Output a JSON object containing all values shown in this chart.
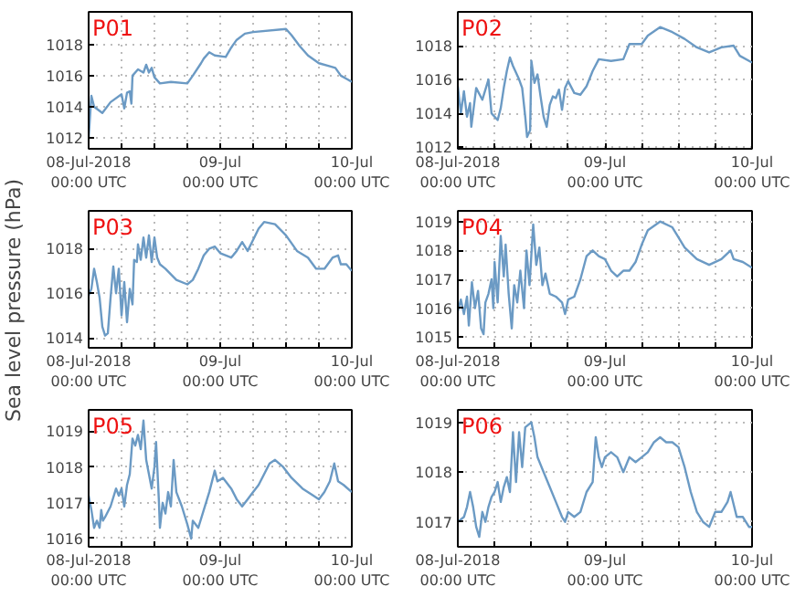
{
  "chart_data": [
    {
      "type": "line",
      "title": "P01",
      "xlim": [
        "2018-07-08T00:00",
        "2018-07-10T00:00"
      ],
      "ylim": [
        1011.3,
        1020.1
      ],
      "yticks": [
        1012,
        1014,
        1016,
        1018
      ],
      "grid": true,
      "xticks": [
        {
          "value": "2018-07-08T00:00",
          "label": "08-Jul-2018\n00:00 UTC"
        },
        {
          "value": "2018-07-08T06:00",
          "label": null
        },
        {
          "value": "2018-07-08T12:00",
          "label": null
        },
        {
          "value": "2018-07-08T18:00",
          "label": null
        },
        {
          "value": "2018-07-09T00:00",
          "label": "09-Jul\n00:00 UTC"
        },
        {
          "value": "2018-07-09T06:00",
          "label": null
        },
        {
          "value": "2018-07-09T12:00",
          "label": null
        },
        {
          "value": "2018-07-09T18:00",
          "label": null
        },
        {
          "value": "2018-07-10T00:00",
          "label": "10-Jul\n00:00 UTC"
        }
      ],
      "series": [
        {
          "color": "#6b9ac4",
          "x": [
            "2018-07-08T00:00",
            "2018-07-08T00:30",
            "2018-07-08T01:00",
            "2018-07-08T02:30",
            "2018-07-08T04:00",
            "2018-07-08T06:00",
            "2018-07-08T06:30",
            "2018-07-08T07:00",
            "2018-07-08T07:30",
            "2018-07-08T07:48",
            "2018-07-08T08:00",
            "2018-07-08T09:00",
            "2018-07-08T10:00",
            "2018-07-08T10:30",
            "2018-07-08T11:00",
            "2018-07-08T11:30",
            "2018-07-08T12:00",
            "2018-07-08T13:00",
            "2018-07-08T15:00",
            "2018-07-08T18:00",
            "2018-07-08T19:00",
            "2018-07-08T20:30",
            "2018-07-08T21:00",
            "2018-07-08T22:00",
            "2018-07-08T23:00",
            "2018-07-09T01:00",
            "2018-07-09T02:00",
            "2018-07-09T03:00",
            "2018-07-09T04:30",
            "2018-07-09T06:00",
            "2018-07-09T12:00",
            "2018-07-09T13:00",
            "2018-07-09T14:30",
            "2018-07-09T16:00",
            "2018-07-09T18:00",
            "2018-07-09T20:00",
            "2018-07-09T21:00",
            "2018-07-09T22:00",
            "2018-07-09T23:00",
            "2018-07-10T00:00"
          ],
          "values": [
            1012.0,
            1014.7,
            1014.0,
            1013.6,
            1014.3,
            1014.8,
            1013.9,
            1014.9,
            1015.0,
            1014.2,
            1016.0,
            1016.4,
            1016.2,
            1016.7,
            1016.2,
            1016.5,
            1015.9,
            1015.5,
            1015.6,
            1015.5,
            1016.0,
            1016.8,
            1017.1,
            1017.5,
            1017.3,
            1017.2,
            1017.8,
            1018.3,
            1018.7,
            1018.8,
            1019.0,
            1018.6,
            1017.9,
            1017.3,
            1016.8,
            1016.6,
            1016.5,
            1016.0,
            1015.8,
            1015.6
          ]
        }
      ]
    },
    {
      "type": "line",
      "title": "P02",
      "xlim": [
        "2018-07-08T00:00",
        "2018-07-10T00:00"
      ],
      "ylim": [
        1011.9,
        1020.0
      ],
      "yticks": [
        1012,
        1014,
        1016,
        1018
      ],
      "grid": true,
      "xticks": [
        {
          "value": "2018-07-08T00:00",
          "label": "08-Jul-2018\n00:00 UTC"
        },
        {
          "value": "2018-07-08T06:00",
          "label": null
        },
        {
          "value": "2018-07-08T12:00",
          "label": null
        },
        {
          "value": "2018-07-08T18:00",
          "label": null
        },
        {
          "value": "2018-07-09T00:00",
          "label": "09-Jul\n00:00 UTC"
        },
        {
          "value": "2018-07-09T06:00",
          "label": null
        },
        {
          "value": "2018-07-09T12:00",
          "label": null
        },
        {
          "value": "2018-07-09T18:00",
          "label": null
        },
        {
          "value": "2018-07-10T00:00",
          "label": "10-Jul\n00:00 UTC"
        }
      ],
      "series": [
        {
          "color": "#6b9ac4",
          "x": [
            "2018-07-08T00:00",
            "2018-07-08T00:30",
            "2018-07-08T01:00",
            "2018-07-08T01:30",
            "2018-07-08T02:00",
            "2018-07-08T02:12",
            "2018-07-08T03:00",
            "2018-07-08T04:00",
            "2018-07-08T05:00",
            "2018-07-08T05:30",
            "2018-07-08T06:30",
            "2018-07-08T07:00",
            "2018-07-08T07:30",
            "2018-07-08T08:00",
            "2018-07-08T08:30",
            "2018-07-08T09:00",
            "2018-07-08T10:00",
            "2018-07-08T10:30",
            "2018-07-08T11:00",
            "2018-07-08T11:18",
            "2018-07-08T11:48",
            "2018-07-08T12:00",
            "2018-07-08T12:30",
            "2018-07-08T13:00",
            "2018-07-08T13:30",
            "2018-07-08T14:00",
            "2018-07-08T14:30",
            "2018-07-08T15:00",
            "2018-07-08T15:30",
            "2018-07-08T16:00",
            "2018-07-08T16:30",
            "2018-07-08T17:00",
            "2018-07-08T17:30",
            "2018-07-08T18:00",
            "2018-07-08T19:00",
            "2018-07-08T20:00",
            "2018-07-08T21:00",
            "2018-07-08T22:00",
            "2018-07-08T23:00",
            "2018-07-09T01:00",
            "2018-07-09T03:00",
            "2018-07-09T04:00",
            "2018-07-09T06:00",
            "2018-07-09T07:00",
            "2018-07-09T09:00",
            "2018-07-09T11:00",
            "2018-07-09T13:00",
            "2018-07-09T15:00",
            "2018-07-09T17:00",
            "2018-07-09T19:00",
            "2018-07-09T21:00",
            "2018-07-09T22:00",
            "2018-07-10T00:00"
          ],
          "values": [
            1015.6,
            1014.0,
            1015.3,
            1013.8,
            1014.6,
            1013.2,
            1015.5,
            1014.8,
            1016.0,
            1014.0,
            1013.6,
            1014.3,
            1015.5,
            1016.5,
            1017.3,
            1016.8,
            1016.0,
            1015.5,
            1013.8,
            1012.6,
            1013.0,
            1017.1,
            1015.8,
            1016.3,
            1015.0,
            1013.8,
            1013.2,
            1014.5,
            1015.0,
            1014.9,
            1015.4,
            1014.2,
            1015.5,
            1015.9,
            1015.2,
            1015.1,
            1015.6,
            1016.5,
            1017.2,
            1017.1,
            1017.2,
            1018.1,
            1018.1,
            1018.6,
            1019.1,
            1018.8,
            1018.4,
            1017.9,
            1017.6,
            1017.9,
            1018.0,
            1017.4,
            1017.0
          ]
        }
      ]
    },
    {
      "type": "line",
      "title": "P03",
      "ylabel": "Sea level pressure (hPa)",
      "xlim": [
        "2018-07-08T00:00",
        "2018-07-10T00:00"
      ],
      "ylim": [
        1013.55,
        1019.7
      ],
      "yticks": [
        1014,
        1016,
        1018
      ],
      "grid": true,
      "xticks": [
        {
          "value": "2018-07-08T00:00",
          "label": "08-Jul-2018\n00:00 UTC"
        },
        {
          "value": "2018-07-08T06:00",
          "label": null
        },
        {
          "value": "2018-07-08T12:00",
          "label": null
        },
        {
          "value": "2018-07-08T18:00",
          "label": null
        },
        {
          "value": "2018-07-09T00:00",
          "label": "09-Jul\n00:00 UTC"
        },
        {
          "value": "2018-07-09T06:00",
          "label": null
        },
        {
          "value": "2018-07-09T12:00",
          "label": null
        },
        {
          "value": "2018-07-09T18:00",
          "label": null
        },
        {
          "value": "2018-07-10T00:00",
          "label": "10-Jul\n00:00 UTC"
        }
      ],
      "series": [
        {
          "color": "#6b9ac4",
          "x": [
            "2018-07-08T00:00",
            "2018-07-08T00:30",
            "2018-07-08T01:00",
            "2018-07-08T01:30",
            "2018-07-08T02:00",
            "2018-07-08T02:30",
            "2018-07-08T03:00",
            "2018-07-08T03:30",
            "2018-07-08T04:00",
            "2018-07-08T04:30",
            "2018-07-08T05:00",
            "2018-07-08T05:30",
            "2018-07-08T06:00",
            "2018-07-08T06:30",
            "2018-07-08T07:00",
            "2018-07-08T07:30",
            "2018-07-08T08:00",
            "2018-07-08T08:18",
            "2018-07-08T08:48",
            "2018-07-08T09:00",
            "2018-07-08T09:30",
            "2018-07-08T10:00",
            "2018-07-08T10:30",
            "2018-07-08T11:00",
            "2018-07-08T11:30",
            "2018-07-08T12:00",
            "2018-07-08T12:30",
            "2018-07-08T13:00",
            "2018-07-08T14:00",
            "2018-07-08T16:00",
            "2018-07-08T18:00",
            "2018-07-08T19:00",
            "2018-07-08T20:00",
            "2018-07-08T21:00",
            "2018-07-08T22:00",
            "2018-07-08T23:00",
            "2018-07-09T00:00",
            "2018-07-09T02:00",
            "2018-07-09T03:00",
            "2018-07-09T04:00",
            "2018-07-09T05:00",
            "2018-07-09T06:00",
            "2018-07-09T07:00",
            "2018-07-09T08:00",
            "2018-07-09T10:00",
            "2018-07-09T12:00",
            "2018-07-09T14:00",
            "2018-07-09T16:00",
            "2018-07-09T17:30",
            "2018-07-09T19:00",
            "2018-07-09T20:30",
            "2018-07-09T21:30",
            "2018-07-09T22:00",
            "2018-07-09T23:00",
            "2018-07-10T00:00"
          ],
          "values": [
            1015.9,
            1016.2,
            1017.1,
            1016.5,
            1015.8,
            1014.5,
            1014.1,
            1014.2,
            1015.8,
            1017.2,
            1016.0,
            1017.1,
            1015.0,
            1016.5,
            1014.7,
            1016.2,
            1015.5,
            1017.5,
            1017.4,
            1018.2,
            1017.5,
            1018.5,
            1017.6,
            1018.6,
            1017.4,
            1018.5,
            1017.6,
            1017.3,
            1017.1,
            1016.6,
            1016.4,
            1016.6,
            1017.1,
            1017.7,
            1018.0,
            1018.1,
            1017.8,
            1017.6,
            1017.9,
            1018.3,
            1017.9,
            1018.4,
            1018.9,
            1019.2,
            1019.1,
            1018.6,
            1017.9,
            1017.6,
            1017.1,
            1017.1,
            1017.6,
            1017.7,
            1017.3,
            1017.3,
            1017.0
          ]
        }
      ]
    },
    {
      "type": "line",
      "title": "P04",
      "xlim": [
        "2018-07-08T00:00",
        "2018-07-10T00:00"
      ],
      "ylim": [
        1014.63,
        1019.37
      ],
      "yticks": [
        1015,
        1016,
        1017,
        1018,
        1019
      ],
      "grid": true,
      "xticks": [
        {
          "value": "2018-07-08T00:00",
          "label": "08-Jul-2018\n00:00 UTC"
        },
        {
          "value": "2018-07-08T06:00",
          "label": null
        },
        {
          "value": "2018-07-08T12:00",
          "label": null
        },
        {
          "value": "2018-07-08T18:00",
          "label": null
        },
        {
          "value": "2018-07-09T00:00",
          "label": "09-Jul\n00:00 UTC"
        },
        {
          "value": "2018-07-09T06:00",
          "label": null
        },
        {
          "value": "2018-07-09T12:00",
          "label": null
        },
        {
          "value": "2018-07-09T18:00",
          "label": null
        },
        {
          "value": "2018-07-10T00:00",
          "label": "10-Jul\n00:00 UTC"
        }
      ],
      "series": [
        {
          "color": "#6b9ac4",
          "x": [
            "2018-07-08T00:00",
            "2018-07-08T00:30",
            "2018-07-08T01:00",
            "2018-07-08T01:30",
            "2018-07-08T01:48",
            "2018-07-08T02:18",
            "2018-07-08T02:48",
            "2018-07-08T03:18",
            "2018-07-08T03:48",
            "2018-07-08T04:12",
            "2018-07-08T04:30",
            "2018-07-08T05:00",
            "2018-07-08T05:30",
            "2018-07-08T05:48",
            "2018-07-08T06:00",
            "2018-07-08T06:30",
            "2018-07-08T07:00",
            "2018-07-08T07:30",
            "2018-07-08T07:48",
            "2018-07-08T08:18",
            "2018-07-08T08:48",
            "2018-07-08T09:12",
            "2018-07-08T09:42",
            "2018-07-08T10:12",
            "2018-07-08T10:48",
            "2018-07-08T11:12",
            "2018-07-08T11:42",
            "2018-07-08T12:18",
            "2018-07-08T12:48",
            "2018-07-08T13:18",
            "2018-07-08T13:48",
            "2018-07-08T14:18",
            "2018-07-08T15:00",
            "2018-07-08T16:00",
            "2018-07-08T17:00",
            "2018-07-08T17:30",
            "2018-07-08T18:00",
            "2018-07-08T19:00",
            "2018-07-08T20:00",
            "2018-07-08T21:00",
            "2018-07-08T22:00",
            "2018-07-08T23:00",
            "2018-07-09T00:00",
            "2018-07-09T01:00",
            "2018-07-09T02:00",
            "2018-07-09T03:00",
            "2018-07-09T04:00",
            "2018-07-09T05:00",
            "2018-07-09T06:00",
            "2018-07-09T07:00",
            "2018-07-09T09:00",
            "2018-07-09T11:00",
            "2018-07-09T13:00",
            "2018-07-09T15:00",
            "2018-07-09T17:00",
            "2018-07-09T19:00",
            "2018-07-09T20:30",
            "2018-07-09T21:00",
            "2018-07-09T22:30",
            "2018-07-10T00:00"
          ],
          "values": [
            1015.9,
            1016.3,
            1015.8,
            1016.4,
            1015.4,
            1016.9,
            1016.0,
            1016.6,
            1015.3,
            1015.1,
            1016.2,
            1016.5,
            1017.0,
            1016.0,
            1017.6,
            1016.2,
            1018.5,
            1017.1,
            1018.2,
            1016.5,
            1015.3,
            1016.8,
            1016.2,
            1017.3,
            1016.0,
            1018.0,
            1016.8,
            1018.9,
            1017.5,
            1018.1,
            1016.8,
            1017.2,
            1016.5,
            1016.4,
            1016.2,
            1015.8,
            1016.3,
            1016.4,
            1017.0,
            1017.8,
            1018.0,
            1017.8,
            1017.7,
            1017.3,
            1017.1,
            1017.3,
            1017.3,
            1017.6,
            1018.2,
            1018.7,
            1019.0,
            1018.8,
            1018.1,
            1017.7,
            1017.5,
            1017.7,
            1018.0,
            1017.7,
            1017.6,
            1017.4
          ]
        }
      ]
    },
    {
      "type": "line",
      "title": "P05",
      "xlim": [
        "2018-07-08T00:00",
        "2018-07-10T00:00"
      ],
      "ylim": [
        1015.77,
        1019.6
      ],
      "yticks": [
        1016,
        1017,
        1018,
        1019
      ],
      "grid": true,
      "xticks": [
        {
          "value": "2018-07-08T00:00",
          "label": "08-Jul-2018\n00:00 UTC"
        },
        {
          "value": "2018-07-08T06:00",
          "label": null
        },
        {
          "value": "2018-07-08T12:00",
          "label": null
        },
        {
          "value": "2018-07-08T18:00",
          "label": null
        },
        {
          "value": "2018-07-09T00:00",
          "label": "09-Jul\n00:00 UTC"
        },
        {
          "value": "2018-07-09T06:00",
          "label": null
        },
        {
          "value": "2018-07-09T12:00",
          "label": null
        },
        {
          "value": "2018-07-09T18:00",
          "label": null
        },
        {
          "value": "2018-07-10T00:00",
          "label": "10-Jul\n00:00 UTC"
        }
      ],
      "series": [
        {
          "color": "#6b9ac4",
          "x": [
            "2018-07-08T00:00",
            "2018-07-08T00:30",
            "2018-07-08T01:00",
            "2018-07-08T01:30",
            "2018-07-08T02:00",
            "2018-07-08T02:18",
            "2018-07-08T02:36",
            "2018-07-08T03:00",
            "2018-07-08T04:00",
            "2018-07-08T05:00",
            "2018-07-08T05:30",
            "2018-07-08T06:00",
            "2018-07-08T06:30",
            "2018-07-08T07:00",
            "2018-07-08T07:30",
            "2018-07-08T08:00",
            "2018-07-08T08:30",
            "2018-07-08T09:00",
            "2018-07-08T09:30",
            "2018-07-08T10:00",
            "2018-07-08T10:30",
            "2018-07-08T11:00",
            "2018-07-08T11:30",
            "2018-07-08T12:00",
            "2018-07-08T12:18",
            "2018-07-08T12:48",
            "2018-07-08T13:00",
            "2018-07-08T13:30",
            "2018-07-08T14:00",
            "2018-07-08T14:30",
            "2018-07-08T15:00",
            "2018-07-08T15:30",
            "2018-07-08T16:00",
            "2018-07-08T17:00",
            "2018-07-08T18:00",
            "2018-07-08T18:42",
            "2018-07-08T19:00",
            "2018-07-08T20:00",
            "2018-07-08T21:00",
            "2018-07-08T22:00",
            "2018-07-08T23:00",
            "2018-07-08T23:30",
            "2018-07-09T00:30",
            "2018-07-09T02:00",
            "2018-07-09T03:00",
            "2018-07-09T04:00",
            "2018-07-09T05:00",
            "2018-07-09T06:00",
            "2018-07-09T07:00",
            "2018-07-09T08:00",
            "2018-07-09T09:00",
            "2018-07-09T10:00",
            "2018-07-09T11:30",
            "2018-07-09T13:00",
            "2018-07-09T15:00",
            "2018-07-09T17:00",
            "2018-07-09T18:00",
            "2018-07-09T19:00",
            "2018-07-09T20:00",
            "2018-07-09T20:48",
            "2018-07-09T21:30",
            "2018-07-09T22:30",
            "2018-07-10T00:00"
          ],
          "values": [
            1017.2,
            1016.8,
            1016.3,
            1016.5,
            1016.3,
            1016.8,
            1016.5,
            1016.6,
            1016.9,
            1017.4,
            1017.2,
            1017.4,
            1016.9,
            1017.5,
            1017.8,
            1018.8,
            1018.6,
            1018.9,
            1018.5,
            1019.3,
            1018.2,
            1017.8,
            1017.4,
            1018.0,
            1018.7,
            1017.1,
            1016.3,
            1017.0,
            1016.7,
            1017.3,
            1016.9,
            1018.2,
            1017.3,
            1016.9,
            1016.4,
            1016.0,
            1016.5,
            1016.3,
            1016.8,
            1017.3,
            1017.9,
            1017.6,
            1017.7,
            1017.4,
            1017.1,
            1016.9,
            1017.1,
            1017.3,
            1017.5,
            1017.8,
            1018.1,
            1018.2,
            1018.0,
            1017.7,
            1017.4,
            1017.2,
            1017.1,
            1017.3,
            1017.6,
            1018.1,
            1017.6,
            1017.5,
            1017.3
          ]
        }
      ]
    },
    {
      "type": "line",
      "title": "P06",
      "xlim": [
        "2018-07-08T00:00",
        "2018-07-10T00:00"
      ],
      "ylim": [
        1016.5,
        1019.25
      ],
      "yticks": [
        1017,
        1018,
        1019
      ],
      "grid": true,
      "xticks": [
        {
          "value": "2018-07-08T00:00",
          "label": "08-Jul-2018\n00:00 UTC"
        },
        {
          "value": "2018-07-08T06:00",
          "label": null
        },
        {
          "value": "2018-07-08T12:00",
          "label": null
        },
        {
          "value": "2018-07-08T18:00",
          "label": null
        },
        {
          "value": "2018-07-09T00:00",
          "label": "09-Jul\n00:00 UTC"
        },
        {
          "value": "2018-07-09T06:00",
          "label": null
        },
        {
          "value": "2018-07-09T12:00",
          "label": null
        },
        {
          "value": "2018-07-09T18:00",
          "label": null
        },
        {
          "value": "2018-07-10T00:00",
          "label": "10-Jul\n00:00 UTC"
        }
      ],
      "series": [
        {
          "color": "#6b9ac4",
          "x": [
            "2018-07-08T00:00",
            "2018-07-08T01:00",
            "2018-07-08T01:30",
            "2018-07-08T02:00",
            "2018-07-08T02:30",
            "2018-07-08T03:00",
            "2018-07-08T03:30",
            "2018-07-08T04:00",
            "2018-07-08T04:30",
            "2018-07-08T05:00",
            "2018-07-08T05:30",
            "2018-07-08T06:00",
            "2018-07-08T06:30",
            "2018-07-08T07:00",
            "2018-07-08T07:30",
            "2018-07-08T08:00",
            "2018-07-08T08:30",
            "2018-07-08T09:00",
            "2018-07-08T09:30",
            "2018-07-08T10:00",
            "2018-07-08T10:30",
            "2018-07-08T11:00",
            "2018-07-08T12:00",
            "2018-07-08T12:30",
            "2018-07-08T13:00",
            "2018-07-08T14:00",
            "2018-07-08T15:00",
            "2018-07-08T16:00",
            "2018-07-08T17:00",
            "2018-07-08T17:30",
            "2018-07-08T18:00",
            "2018-07-08T19:00",
            "2018-07-08T20:00",
            "2018-07-08T21:00",
            "2018-07-08T22:00",
            "2018-07-08T22:30",
            "2018-07-08T23:00",
            "2018-07-08T23:30",
            "2018-07-09T00:00",
            "2018-07-09T01:00",
            "2018-07-09T02:00",
            "2018-07-09T03:00",
            "2018-07-09T04:00",
            "2018-07-09T05:00",
            "2018-07-09T06:00",
            "2018-07-09T07:00",
            "2018-07-09T08:00",
            "2018-07-09T09:00",
            "2018-07-09T10:00",
            "2018-07-09T11:00",
            "2018-07-09T12:00",
            "2018-07-09T13:00",
            "2018-07-09T14:00",
            "2018-07-09T15:00",
            "2018-07-09T16:00",
            "2018-07-09T17:00",
            "2018-07-09T18:00",
            "2018-07-09T19:00",
            "2018-07-09T20:00",
            "2018-07-09T20:30",
            "2018-07-09T21:30",
            "2018-07-09T22:30",
            "2018-07-09T23:30",
            "2018-07-10T00:00"
          ],
          "values": [
            1017.0,
            1017.1,
            1017.3,
            1017.6,
            1017.3,
            1016.9,
            1016.7,
            1017.2,
            1017.0,
            1017.3,
            1017.5,
            1017.6,
            1017.8,
            1017.4,
            1017.7,
            1017.9,
            1017.6,
            1018.8,
            1017.8,
            1018.8,
            1018.1,
            1018.9,
            1019.0,
            1018.7,
            1018.3,
            1018.0,
            1017.7,
            1017.4,
            1017.1,
            1017.0,
            1017.2,
            1017.1,
            1017.2,
            1017.6,
            1017.8,
            1018.7,
            1018.3,
            1018.1,
            1018.3,
            1018.4,
            1018.3,
            1018.0,
            1018.3,
            1018.2,
            1018.3,
            1018.4,
            1018.6,
            1018.7,
            1018.6,
            1018.6,
            1018.5,
            1018.1,
            1017.6,
            1017.2,
            1017.0,
            1016.9,
            1017.2,
            1017.2,
            1017.4,
            1017.6,
            1017.1,
            1017.1,
            1016.9,
            1016.9
          ]
        }
      ]
    }
  ]
}
